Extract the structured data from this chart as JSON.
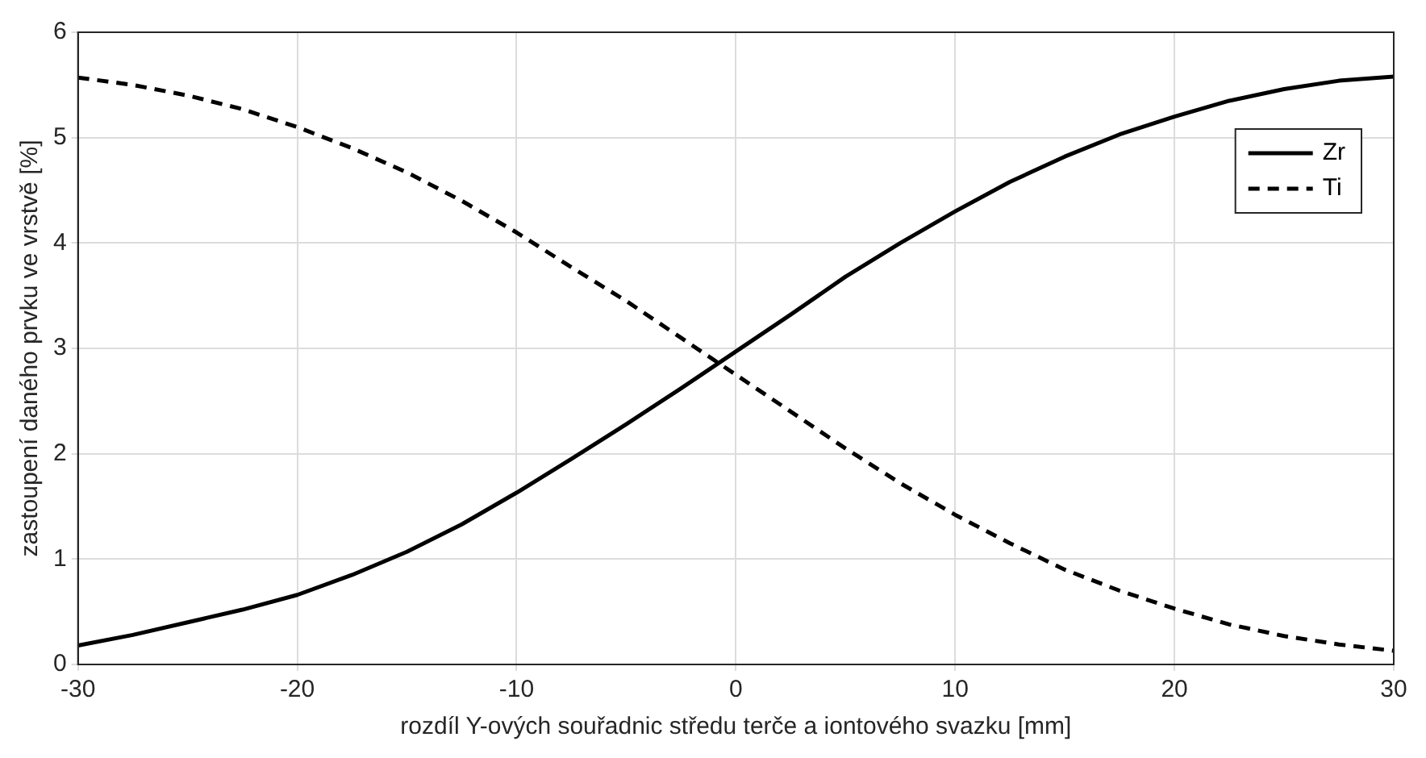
{
  "chart_data": {
    "type": "line",
    "xlabel": "rozdíl Y-ových souřadnic středu terče a iontového svazku [mm]",
    "ylabel": "zastoupení daného prvku ve vrstvě [%]",
    "x": [
      -30,
      -27.5,
      -25,
      -22.5,
      -20,
      -17.5,
      -15,
      -12.5,
      -10,
      -7.5,
      -5,
      -2.5,
      0,
      2.5,
      5,
      7.5,
      10,
      12.5,
      15,
      17.5,
      20,
      22.5,
      25,
      27.5,
      30
    ],
    "series": [
      {
        "name": "Zr",
        "color": "#000000",
        "line_style": "solid",
        "values": [
          0.18,
          0.28,
          0.4,
          0.52,
          0.66,
          0.85,
          1.07,
          1.33,
          1.63,
          1.95,
          2.28,
          2.62,
          2.97,
          3.32,
          3.68,
          4.0,
          4.3,
          4.58,
          4.82,
          5.03,
          5.2,
          5.35,
          5.46,
          5.54,
          5.58
        ]
      },
      {
        "name": "Ti",
        "color": "#000000",
        "line_style": "dashed",
        "values": [
          5.57,
          5.5,
          5.4,
          5.27,
          5.1,
          4.9,
          4.67,
          4.4,
          4.1,
          3.77,
          3.45,
          3.1,
          2.75,
          2.4,
          2.05,
          1.72,
          1.42,
          1.15,
          0.9,
          0.7,
          0.53,
          0.38,
          0.27,
          0.19,
          0.13
        ]
      }
    ],
    "xlim": [
      -30,
      30
    ],
    "xticks": [
      -30,
      -20,
      -10,
      0,
      10,
      20,
      30
    ],
    "ylim": [
      0,
      6
    ],
    "yticks": [
      0,
      1,
      2,
      3,
      4,
      5,
      6
    ],
    "grid": true,
    "legend": "top right",
    "marker": "none"
  }
}
